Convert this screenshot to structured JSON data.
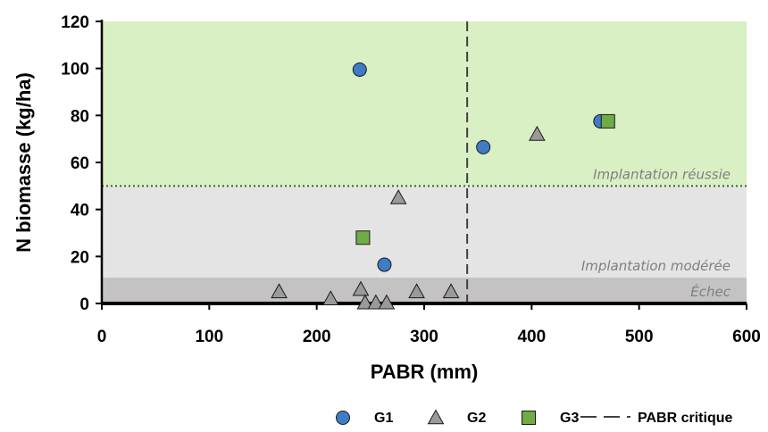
{
  "chart_data": {
    "type": "scatter",
    "xlabel": "PABR (mm)",
    "ylabel": "N biomasse (kg/ha)",
    "xlim": [
      0,
      600
    ],
    "ylim": [
      0,
      120
    ],
    "x_ticks": [
      "0",
      "100",
      "200",
      "300",
      "400",
      "500",
      "600"
    ],
    "y_ticks": [
      "0",
      "20",
      "40",
      "60",
      "80",
      "100",
      "120"
    ],
    "grid": false,
    "legend_position": "bottom-right",
    "zones": [
      {
        "label": "Implantation réussie",
        "y_from": 50,
        "y_to": 120,
        "color": "#d9efc4"
      },
      {
        "label": "Implantation modérée",
        "y_from": 11,
        "y_to": 50,
        "color": "#e4e4e4"
      },
      {
        "label": "Échec",
        "y_from": 0,
        "y_to": 11,
        "color": "#c4c2c2"
      }
    ],
    "zone_label_color": "#7f7f7f",
    "reference_line": {
      "name": "PABR critique",
      "axis": "x",
      "value": 340,
      "style": "dashed",
      "color": "#404040"
    },
    "threshold_line": {
      "axis": "y",
      "value": 50,
      "style": "dotted",
      "color": "#3f5f2a"
    },
    "series": [
      {
        "name": "G1",
        "marker": "circle",
        "color": "#3e7cc6",
        "points": [
          [
            240,
            99.5
          ],
          [
            263,
            16.5
          ],
          [
            355,
            66.5
          ],
          [
            464,
            77.5
          ]
        ]
      },
      {
        "name": "G2",
        "marker": "triangle",
        "color": "#9a9a9a",
        "points": [
          [
            165,
            5
          ],
          [
            213,
            2
          ],
          [
            241,
            6
          ],
          [
            245,
            0.3
          ],
          [
            255,
            0.3
          ],
          [
            265,
            0.3
          ],
          [
            276,
            45
          ],
          [
            293,
            5
          ],
          [
            325,
            5
          ],
          [
            405,
            72
          ]
        ]
      },
      {
        "name": "G3",
        "marker": "square",
        "color": "#6fac46",
        "points": [
          [
            243,
            28
          ],
          [
            471,
            77.5
          ]
        ]
      }
    ]
  }
}
